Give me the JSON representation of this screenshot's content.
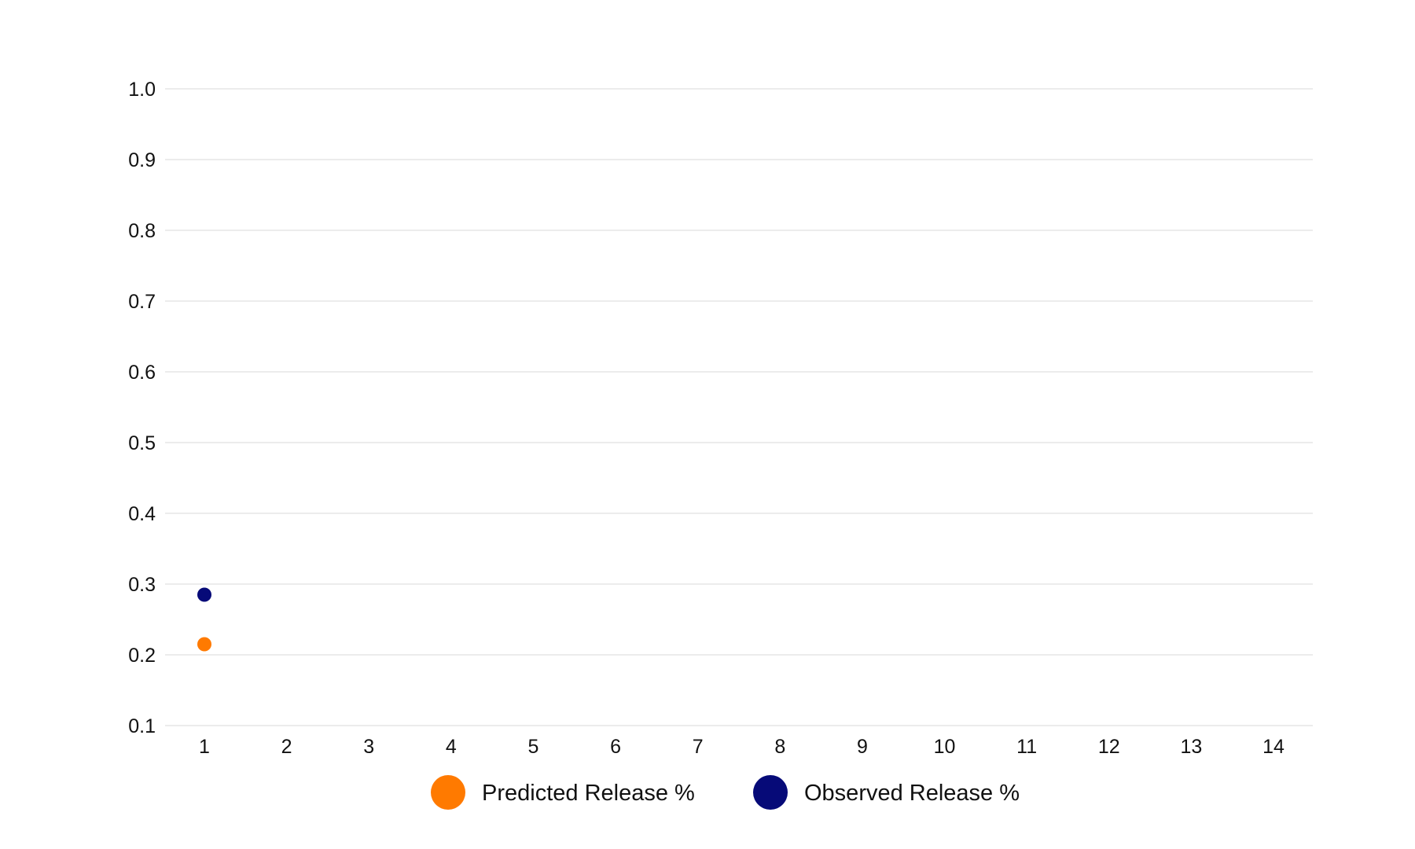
{
  "chart_data": {
    "type": "scatter",
    "title": "",
    "xlabel": "",
    "ylabel": "",
    "x_ticks": [
      "1",
      "2",
      "3",
      "4",
      "5",
      "6",
      "7",
      "8",
      "9",
      "10",
      "11",
      "12",
      "13",
      "14"
    ],
    "y_ticks": [
      "1.0",
      "0.9",
      "0.8",
      "0.7",
      "0.6",
      "0.5",
      "0.4",
      "0.3",
      "0.2",
      "0.1"
    ],
    "xlim": [
      0.5,
      14.5
    ],
    "ylim": [
      0.1,
      1.0
    ],
    "grid": true,
    "legend_position": "bottom-center",
    "series": [
      {
        "name": "Predicted Release %",
        "color": "#ff7a00",
        "points": [
          {
            "x": 1,
            "y": 0.215
          }
        ]
      },
      {
        "name": "Observed Release %",
        "color": "#060a78",
        "points": [
          {
            "x": 1,
            "y": 0.285
          }
        ]
      }
    ]
  }
}
